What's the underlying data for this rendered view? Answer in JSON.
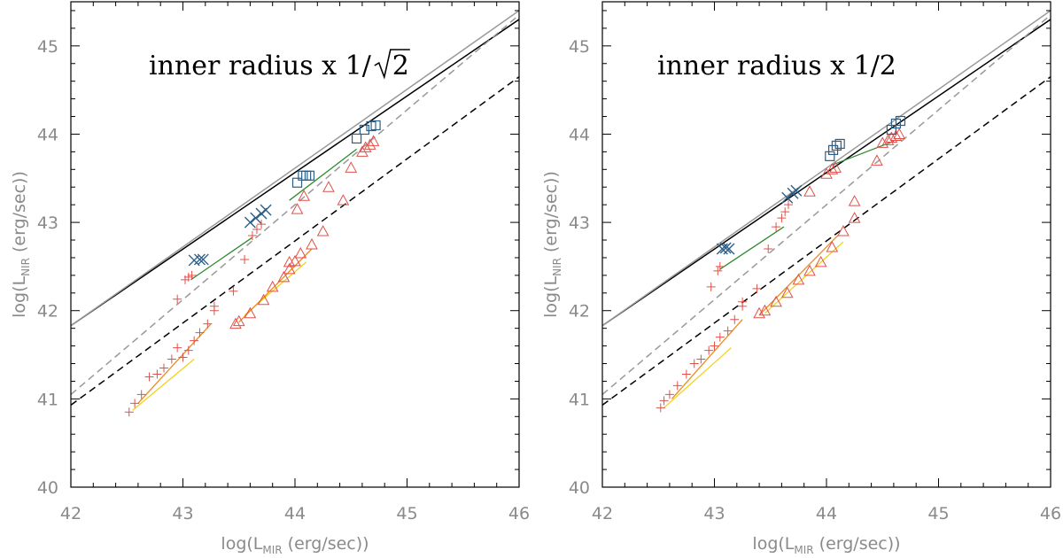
{
  "chart_data": [
    {
      "type": "scatter",
      "title": "inner radius x 1/",
      "title_root": "2",
      "xlabel_pre": "log(L",
      "xlabel_sub": "MIR",
      "xlabel_post": " (erg/sec))",
      "ylabel_pre": "log(L",
      "ylabel_sub": "NIR",
      "ylabel_post": " (erg/sec))",
      "xlim": [
        42,
        46
      ],
      "ylim": [
        40,
        45.5
      ],
      "xticks": [
        "42",
        "43",
        "44",
        "45",
        "46"
      ],
      "yticks": [
        "40",
        "41",
        "42",
        "43",
        "44",
        "45"
      ],
      "ref_lines": [
        {
          "name": "solid-black",
          "color": "#000000",
          "dash": "",
          "x": [
            42,
            46
          ],
          "y": [
            41.83,
            45.3
          ]
        },
        {
          "name": "solid-gray",
          "color": "#999999",
          "dash": "",
          "x": [
            42,
            46
          ],
          "y": [
            41.83,
            45.4
          ]
        },
        {
          "name": "dashed-gray",
          "color": "#999999",
          "dash": "8,5",
          "x": [
            42,
            46
          ],
          "y": [
            41.05,
            45.35
          ]
        },
        {
          "name": "dashed-black",
          "color": "#000000",
          "dash": "8,5",
          "x": [
            42,
            46
          ],
          "y": [
            40.93,
            44.65
          ]
        }
      ],
      "series": [
        {
          "name": "cross-pluses",
          "marker": "plus",
          "color": "#e0504a",
          "x": [
            42.52,
            42.57,
            42.63,
            42.7,
            42.77,
            42.83,
            42.9,
            42.95,
            43.0,
            43.05,
            43.1,
            43.15,
            43.22,
            43.28,
            42.95,
            43.02,
            43.05,
            43.08,
            43.28,
            43.45,
            43.55,
            43.62,
            43.66,
            43.7
          ],
          "y": [
            40.85,
            40.95,
            41.05,
            41.25,
            41.28,
            41.35,
            41.45,
            41.58,
            41.47,
            41.55,
            41.66,
            41.75,
            41.85,
            42.0,
            42.13,
            42.35,
            42.38,
            42.4,
            42.05,
            42.22,
            42.58,
            42.85,
            42.92,
            42.98
          ]
        },
        {
          "name": "triangles",
          "marker": "triangle",
          "color": "#e0504a",
          "x": [
            43.47,
            43.5,
            43.6,
            43.72,
            43.8,
            43.9,
            43.95,
            44.0,
            44.05,
            44.15,
            44.25,
            43.95,
            44.02,
            44.08,
            44.3,
            44.43,
            44.5,
            44.6,
            44.63,
            44.67,
            44.7
          ],
          "y": [
            41.85,
            41.88,
            41.97,
            42.12,
            42.27,
            42.38,
            42.47,
            42.56,
            42.65,
            42.75,
            42.9,
            42.55,
            43.15,
            43.3,
            43.4,
            43.25,
            43.62,
            43.8,
            43.85,
            43.88,
            43.92
          ]
        },
        {
          "name": "crosses",
          "marker": "x",
          "color": "#2a5f8a",
          "x": [
            43.1,
            43.15,
            43.18,
            43.6,
            43.65,
            43.7,
            43.74
          ],
          "y": [
            42.57,
            42.58,
            42.58,
            43.0,
            43.05,
            43.1,
            43.14
          ]
        },
        {
          "name": "squares",
          "marker": "square",
          "color": "#2a5f8a",
          "x": [
            44.02,
            44.07,
            44.1,
            44.13,
            44.55,
            44.62,
            44.68,
            44.72
          ],
          "y": [
            43.45,
            43.53,
            43.53,
            43.53,
            43.95,
            44.05,
            44.09,
            44.1
          ]
        }
      ],
      "tracks": [
        {
          "name": "green-1",
          "color": "#2e8b2e",
          "x": [
            43.07,
            43.62
          ],
          "y": [
            42.35,
            42.83
          ]
        },
        {
          "name": "green-2",
          "color": "#2e8b2e",
          "x": [
            43.95,
            44.55
          ],
          "y": [
            43.25,
            43.83
          ]
        },
        {
          "name": "yellow-1",
          "color": "#f2d21b",
          "x": [
            42.55,
            43.1
          ],
          "y": [
            40.87,
            41.45
          ]
        },
        {
          "name": "orange-1",
          "color": "#f08a1c",
          "x": [
            42.6,
            43.25
          ],
          "y": [
            40.95,
            41.85
          ]
        },
        {
          "name": "yellow-2",
          "color": "#f2d21b",
          "x": [
            43.55,
            44.1
          ],
          "y": [
            41.95,
            42.55
          ]
        },
        {
          "name": "orange-2",
          "color": "#f08a1c",
          "x": [
            43.5,
            44.15
          ],
          "y": [
            41.87,
            42.7
          ]
        }
      ]
    },
    {
      "type": "scatter",
      "title": "inner radius x 1/2",
      "title_root": "",
      "xlabel_pre": "log(L",
      "xlabel_sub": "MIR",
      "xlabel_post": " (erg/sec))",
      "ylabel_pre": "log(L",
      "ylabel_sub": "NIR",
      "ylabel_post": " (erg/sec))",
      "xlim": [
        42,
        46
      ],
      "ylim": [
        40,
        45.5
      ],
      "xticks": [
        "42",
        "43",
        "44",
        "45",
        "46"
      ],
      "yticks": [
        "40",
        "41",
        "42",
        "43",
        "44",
        "45"
      ],
      "ref_lines": [
        {
          "name": "solid-black",
          "color": "#000000",
          "dash": "",
          "x": [
            42,
            46
          ],
          "y": [
            41.83,
            45.3
          ]
        },
        {
          "name": "solid-gray",
          "color": "#999999",
          "dash": "",
          "x": [
            42,
            46
          ],
          "y": [
            41.83,
            45.4
          ]
        },
        {
          "name": "dashed-gray",
          "color": "#999999",
          "dash": "8,5",
          "x": [
            42,
            46
          ],
          "y": [
            41.05,
            45.35
          ]
        },
        {
          "name": "dashed-black",
          "color": "#000000",
          "dash": "8,5",
          "x": [
            42,
            46
          ],
          "y": [
            40.93,
            44.65
          ]
        }
      ],
      "series": [
        {
          "name": "cross-pluses",
          "marker": "plus",
          "color": "#e0504a",
          "x": [
            42.52,
            42.55,
            42.6,
            42.67,
            42.75,
            42.82,
            42.88,
            42.95,
            43.0,
            43.05,
            43.12,
            43.18,
            43.25,
            43.38,
            43.48,
            43.55,
            43.6,
            43.63,
            43.66,
            42.97,
            43.03,
            43.05,
            43.25
          ],
          "y": [
            40.9,
            40.98,
            41.05,
            41.15,
            41.28,
            41.4,
            41.45,
            41.55,
            41.6,
            41.7,
            41.77,
            41.9,
            42.05,
            42.25,
            42.7,
            42.95,
            43.05,
            43.12,
            43.2,
            42.27,
            42.45,
            42.5,
            42.1
          ]
        },
        {
          "name": "triangles",
          "marker": "triangle",
          "color": "#e0504a",
          "x": [
            43.4,
            43.45,
            43.55,
            43.65,
            43.75,
            43.85,
            43.95,
            44.05,
            44.15,
            44.25,
            43.85,
            44.0,
            44.05,
            44.08,
            44.25,
            44.45,
            44.5,
            44.55,
            44.58,
            44.62,
            44.65
          ],
          "y": [
            41.97,
            42.0,
            42.1,
            42.2,
            42.35,
            42.45,
            42.55,
            42.72,
            42.9,
            43.05,
            43.35,
            43.55,
            43.6,
            43.62,
            43.24,
            43.7,
            43.9,
            43.93,
            43.96,
            43.98,
            44.0
          ]
        },
        {
          "name": "crosses",
          "marker": "x",
          "color": "#2a5f8a",
          "x": [
            43.07,
            43.1,
            43.13,
            43.65,
            43.7,
            43.73
          ],
          "y": [
            42.7,
            42.71,
            42.7,
            43.28,
            43.33,
            43.36
          ]
        },
        {
          "name": "squares",
          "marker": "square",
          "color": "#2a5f8a",
          "x": [
            44.03,
            44.06,
            44.09,
            44.12,
            44.58,
            44.62,
            44.66
          ],
          "y": [
            43.75,
            43.82,
            43.87,
            43.89,
            44.05,
            44.12,
            44.15
          ]
        }
      ],
      "tracks": [
        {
          "name": "green-1",
          "color": "#2e8b2e",
          "x": [
            43.05,
            43.62
          ],
          "y": [
            42.47,
            42.95
          ]
        },
        {
          "name": "green-2",
          "color": "#2e8b2e",
          "x": [
            44.05,
            44.6
          ],
          "y": [
            43.65,
            43.92
          ]
        },
        {
          "name": "yellow-1",
          "color": "#f2d21b",
          "x": [
            42.55,
            43.15
          ],
          "y": [
            40.9,
            41.58
          ]
        },
        {
          "name": "orange-1",
          "color": "#f08a1c",
          "x": [
            42.62,
            43.25
          ],
          "y": [
            41.0,
            41.9
          ]
        },
        {
          "name": "yellow-2",
          "color": "#f2d21b",
          "x": [
            43.45,
            44.15
          ],
          "y": [
            41.97,
            42.78
          ]
        },
        {
          "name": "orange-2",
          "color": "#f08a1c",
          "x": [
            43.4,
            44.1
          ],
          "y": [
            41.95,
            42.85
          ]
        }
      ]
    }
  ]
}
